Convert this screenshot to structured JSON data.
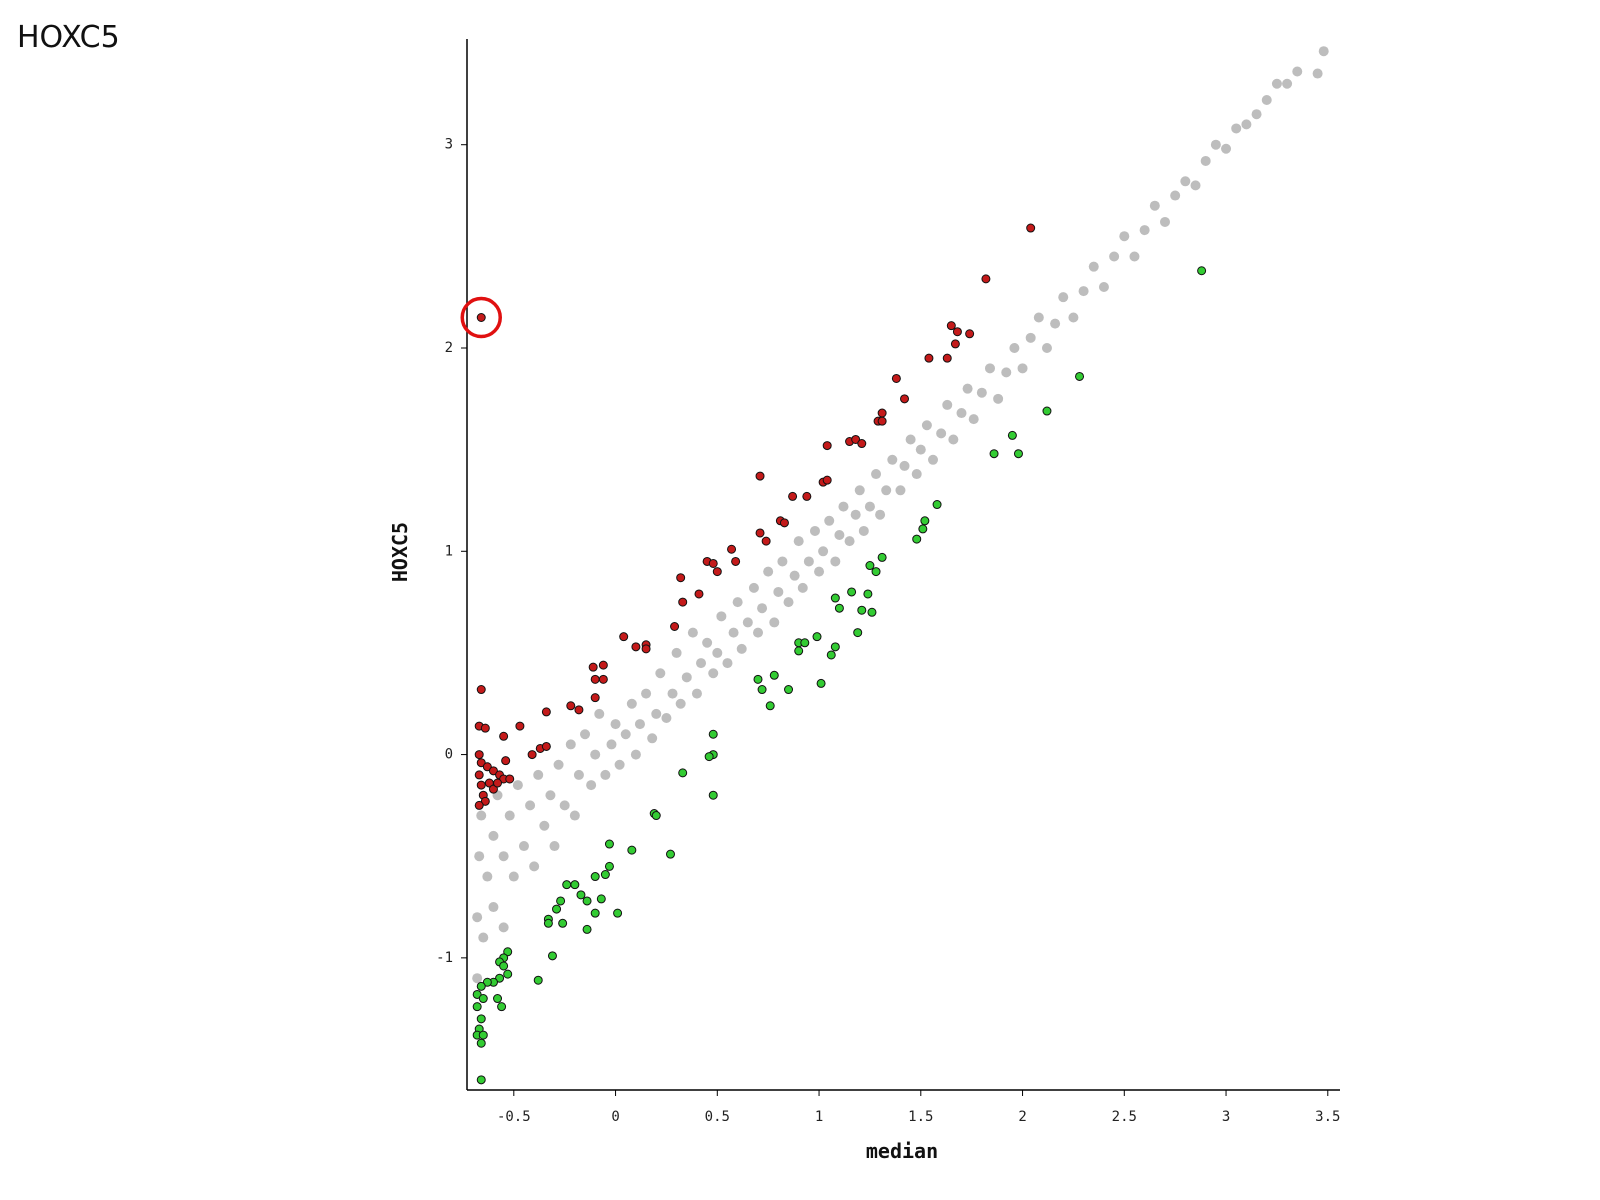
{
  "chart_data": {
    "type": "scatter",
    "title": "HOXC5",
    "xlabel": "median",
    "ylabel": "HOXC5",
    "xlim": [
      -0.73,
      3.56
    ],
    "ylim": [
      -1.65,
      3.52
    ],
    "xticks": [
      -0.5,
      0,
      0.5,
      1,
      1.5,
      2,
      2.5,
      3,
      3.5
    ],
    "yticks": [
      -1,
      0,
      1,
      2,
      3
    ],
    "grid": false,
    "series": [
      {
        "color": "#bdbdbd",
        "x": [
          -0.68,
          -0.68,
          -0.67,
          -0.66,
          -0.65,
          -0.63,
          -0.6,
          -0.6,
          -0.58,
          -0.55,
          -0.55,
          -0.52,
          -0.5,
          -0.48,
          -0.45,
          -0.42,
          -0.4,
          -0.38,
          -0.35,
          -0.32,
          -0.3,
          -0.28,
          -0.25,
          -0.22,
          -0.2,
          -0.18,
          -0.15,
          -0.12,
          -0.1,
          -0.08,
          -0.05,
          -0.02,
          0,
          0.02,
          0.05,
          0.08,
          0.1,
          0.12,
          0.15,
          0.18,
          0.2,
          0.22,
          0.25,
          0.28,
          0.3,
          0.32,
          0.35,
          0.38,
          0.4,
          0.42,
          0.45,
          0.48,
          0.5,
          0.52,
          0.55,
          0.58,
          0.6,
          0.62,
          0.65,
          0.68,
          0.7,
          0.72,
          0.75,
          0.78,
          0.8,
          0.82,
          0.85,
          0.88,
          0.9,
          0.92,
          0.95,
          0.98,
          1,
          1.02,
          1.05,
          1.08,
          1.1,
          1.12,
          1.15,
          1.18,
          1.2,
          1.22,
          1.25,
          1.28,
          1.3,
          1.33,
          1.36,
          1.4,
          1.42,
          1.45,
          1.48,
          1.5,
          1.53,
          1.56,
          1.6,
          1.63,
          1.66,
          1.7,
          1.73,
          1.76,
          1.8,
          1.84,
          1.88,
          1.92,
          1.96,
          2,
          2.04,
          2.08,
          2.12,
          2.16,
          2.2,
          2.25,
          2.3,
          2.35,
          2.4,
          2.45,
          2.5,
          2.55,
          2.6,
          2.65,
          2.7,
          2.75,
          2.8,
          2.85,
          2.9,
          2.95,
          3,
          3.05,
          3.1,
          3.15,
          3.2,
          3.25,
          3.3,
          3.35,
          3.45,
          3.48
        ],
        "values": [
          -1.1,
          -0.8,
          -0.5,
          -0.3,
          -0.9,
          -0.6,
          -0.4,
          -0.75,
          -0.2,
          -0.5,
          -0.85,
          -0.3,
          -0.6,
          -0.15,
          -0.45,
          -0.25,
          -0.55,
          -0.1,
          -0.35,
          -0.2,
          -0.45,
          -0.05,
          -0.25,
          0.05,
          -0.3,
          -0.1,
          0.1,
          -0.15,
          0,
          0.2,
          -0.1,
          0.05,
          0.15,
          -0.05,
          0.1,
          0.25,
          0,
          0.15,
          0.3,
          0.08,
          0.2,
          0.4,
          0.18,
          0.3,
          0.5,
          0.25,
          0.38,
          0.6,
          0.3,
          0.45,
          0.55,
          0.4,
          0.5,
          0.68,
          0.45,
          0.6,
          0.75,
          0.52,
          0.65,
          0.82,
          0.6,
          0.72,
          0.9,
          0.65,
          0.8,
          0.95,
          0.75,
          0.88,
          1.05,
          0.82,
          0.95,
          1.1,
          0.9,
          1,
          1.15,
          0.95,
          1.08,
          1.22,
          1.05,
          1.18,
          1.3,
          1.1,
          1.22,
          1.38,
          1.18,
          1.3,
          1.45,
          1.3,
          1.42,
          1.55,
          1.38,
          1.5,
          1.62,
          1.45,
          1.58,
          1.72,
          1.55,
          1.68,
          1.8,
          1.65,
          1.78,
          1.9,
          1.75,
          1.88,
          2,
          1.9,
          2.05,
          2.15,
          2,
          2.12,
          2.25,
          2.15,
          2.28,
          2.4,
          2.3,
          2.45,
          2.55,
          2.45,
          2.58,
          2.7,
          2.62,
          2.75,
          2.82,
          2.8,
          2.92,
          3,
          2.98,
          3.08,
          3.1,
          3.15,
          3.22,
          3.3,
          3.3,
          3.36,
          3.35,
          3.46
        ]
      },
      {
        "color": "#c41a1a",
        "x": [
          -0.66,
          2.04,
          1.82,
          1.65,
          1.68,
          1.74,
          1.67,
          1.54,
          1.63,
          1.38,
          1.42,
          1.31,
          1.29,
          1.31,
          1.04,
          1.15,
          1.18,
          1.21,
          0.71,
          0.87,
          0.94,
          1.02,
          1.04,
          0.81,
          0.83,
          0.71,
          0.74,
          0.57,
          0.59,
          0.45,
          0.48,
          0.5,
          0.32,
          0.41,
          0.33,
          0.29,
          0.04,
          0.1,
          0.15,
          0.15,
          -0.11,
          -0.06,
          -0.1,
          -0.06,
          -0.1,
          -0.22,
          -0.18,
          -0.34,
          -0.66,
          -0.47,
          -0.55,
          -0.37,
          -0.34,
          -0.41,
          -0.67,
          -0.64,
          -0.67,
          -0.66,
          -0.63,
          -0.6,
          -0.57,
          -0.55,
          -0.52,
          -0.54,
          -0.67,
          -0.66,
          -0.65,
          -0.62,
          -0.6,
          -0.64,
          -0.67,
          -0.58
        ],
        "values": [
          2.15,
          2.59,
          2.34,
          2.11,
          2.08,
          2.07,
          2.02,
          1.95,
          1.95,
          1.85,
          1.75,
          1.68,
          1.64,
          1.64,
          1.52,
          1.54,
          1.55,
          1.53,
          1.37,
          1.27,
          1.27,
          1.34,
          1.35,
          1.15,
          1.14,
          1.09,
          1.05,
          1.01,
          0.95,
          0.95,
          0.94,
          0.9,
          0.87,
          0.79,
          0.75,
          0.63,
          0.58,
          0.53,
          0.54,
          0.52,
          0.43,
          0.44,
          0.37,
          0.37,
          0.28,
          0.24,
          0.22,
          0.21,
          0.32,
          0.14,
          0.09,
          0.03,
          0.04,
          0,
          0.14,
          0.13,
          0,
          -0.04,
          -0.06,
          -0.08,
          -0.1,
          -0.12,
          -0.12,
          -0.03,
          -0.1,
          -0.15,
          -0.2,
          -0.14,
          -0.17,
          -0.23,
          -0.25,
          -0.14
        ]
      },
      {
        "color": "#33cc33",
        "x": [
          2.88,
          2.28,
          2.12,
          1.95,
          1.86,
          1.98,
          1.58,
          1.52,
          1.51,
          1.48,
          1.25,
          1.28,
          1.31,
          1.16,
          1.24,
          1.08,
          1.1,
          1.21,
          1.26,
          1.19,
          0.99,
          0.9,
          0.93,
          0.9,
          1.08,
          1.06,
          0.7,
          0.72,
          0.78,
          0.85,
          1.01,
          0.76,
          0.48,
          0.48,
          0.46,
          0.33,
          0.48,
          0.19,
          0.2,
          -0.03,
          0.08,
          0.27,
          -0.03,
          -0.05,
          -0.1,
          -0.2,
          -0.24,
          0.01,
          -0.17,
          -0.14,
          -0.07,
          -0.27,
          -0.29,
          -0.1,
          -0.33,
          -0.33,
          -0.26,
          -0.14,
          -0.31,
          -0.38,
          -0.53,
          -0.55,
          -0.57,
          -0.55,
          -0.53,
          -0.57,
          -0.6,
          -0.63,
          -0.66,
          -0.68,
          -0.65,
          -0.68,
          -0.58,
          -0.56,
          -0.66,
          -0.67,
          -0.68,
          -0.65,
          -0.66,
          -0.66
        ],
        "values": [
          2.38,
          1.86,
          1.69,
          1.57,
          1.48,
          1.48,
          1.23,
          1.15,
          1.11,
          1.06,
          0.93,
          0.9,
          0.97,
          0.8,
          0.79,
          0.77,
          0.72,
          0.71,
          0.7,
          0.6,
          0.58,
          0.55,
          0.55,
          0.51,
          0.53,
          0.49,
          0.37,
          0.32,
          0.39,
          0.32,
          0.35,
          0.24,
          0.1,
          0,
          -0.01,
          -0.09,
          -0.2,
          -0.29,
          -0.3,
          -0.44,
          -0.47,
          -0.49,
          -0.55,
          -0.59,
          -0.6,
          -0.64,
          -0.64,
          -0.78,
          -0.69,
          -0.72,
          -0.71,
          -0.72,
          -0.76,
          -0.78,
          -0.81,
          -0.83,
          -0.83,
          -0.86,
          -0.99,
          -1.11,
          -0.97,
          -1,
          -1.02,
          -1.04,
          -1.08,
          -1.1,
          -1.12,
          -1.12,
          -1.14,
          -1.18,
          -1.2,
          -1.24,
          -1.2,
          -1.24,
          -1.3,
          -1.35,
          -1.38,
          -1.38,
          -1.42,
          -1.6
        ]
      }
    ]
  }
}
